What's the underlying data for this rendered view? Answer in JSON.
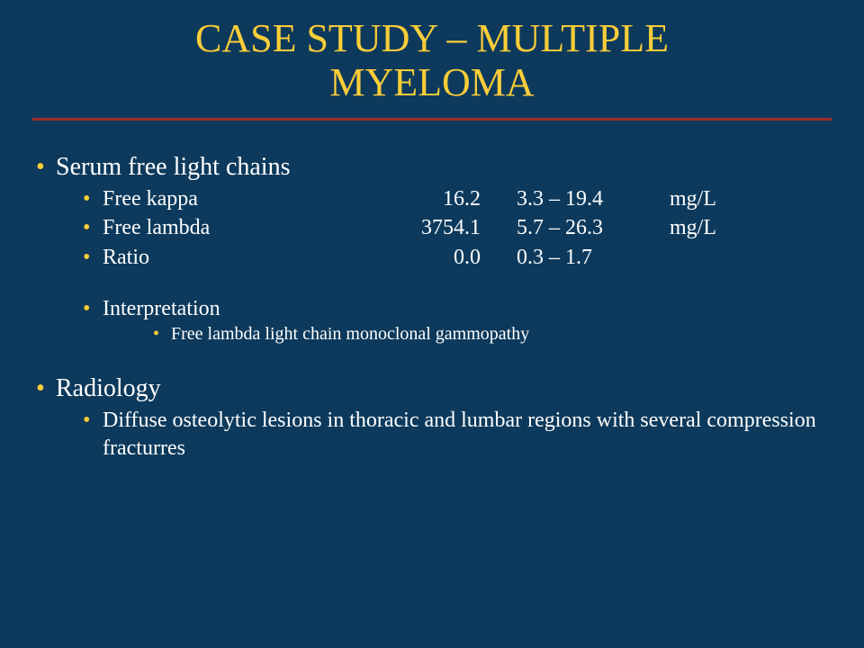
{
  "colors": {
    "background": "#0d3a5c",
    "heading": "#fccd38",
    "bullet": "#fccd38",
    "rule": "#a12b2b",
    "text": "#ffffff"
  },
  "title_line1": "CASE STUDY – MULTIPLE",
  "title_line2": "MYELOMA",
  "sections": {
    "sflc": {
      "heading": "Serum free light chains",
      "rows": [
        {
          "label": "Free kappa",
          "value": "16.2",
          "range": "3.3 – 19.4",
          "unit": "mg/L"
        },
        {
          "label": "Free lambda",
          "value": "3754.1",
          "range": "5.7 – 26.3",
          "unit": "mg/L"
        },
        {
          "label": "Ratio",
          "value": "0.0",
          "range": "0.3 – 1.7",
          "unit": ""
        }
      ],
      "interpretation_label": "Interpretation",
      "interpretation_text": "Free lambda light chain monoclonal gammopathy"
    },
    "radiology": {
      "heading": "Radiology",
      "text": "Diffuse osteolytic lesions in thoracic and lumbar regions with several compression fracturres"
    }
  }
}
